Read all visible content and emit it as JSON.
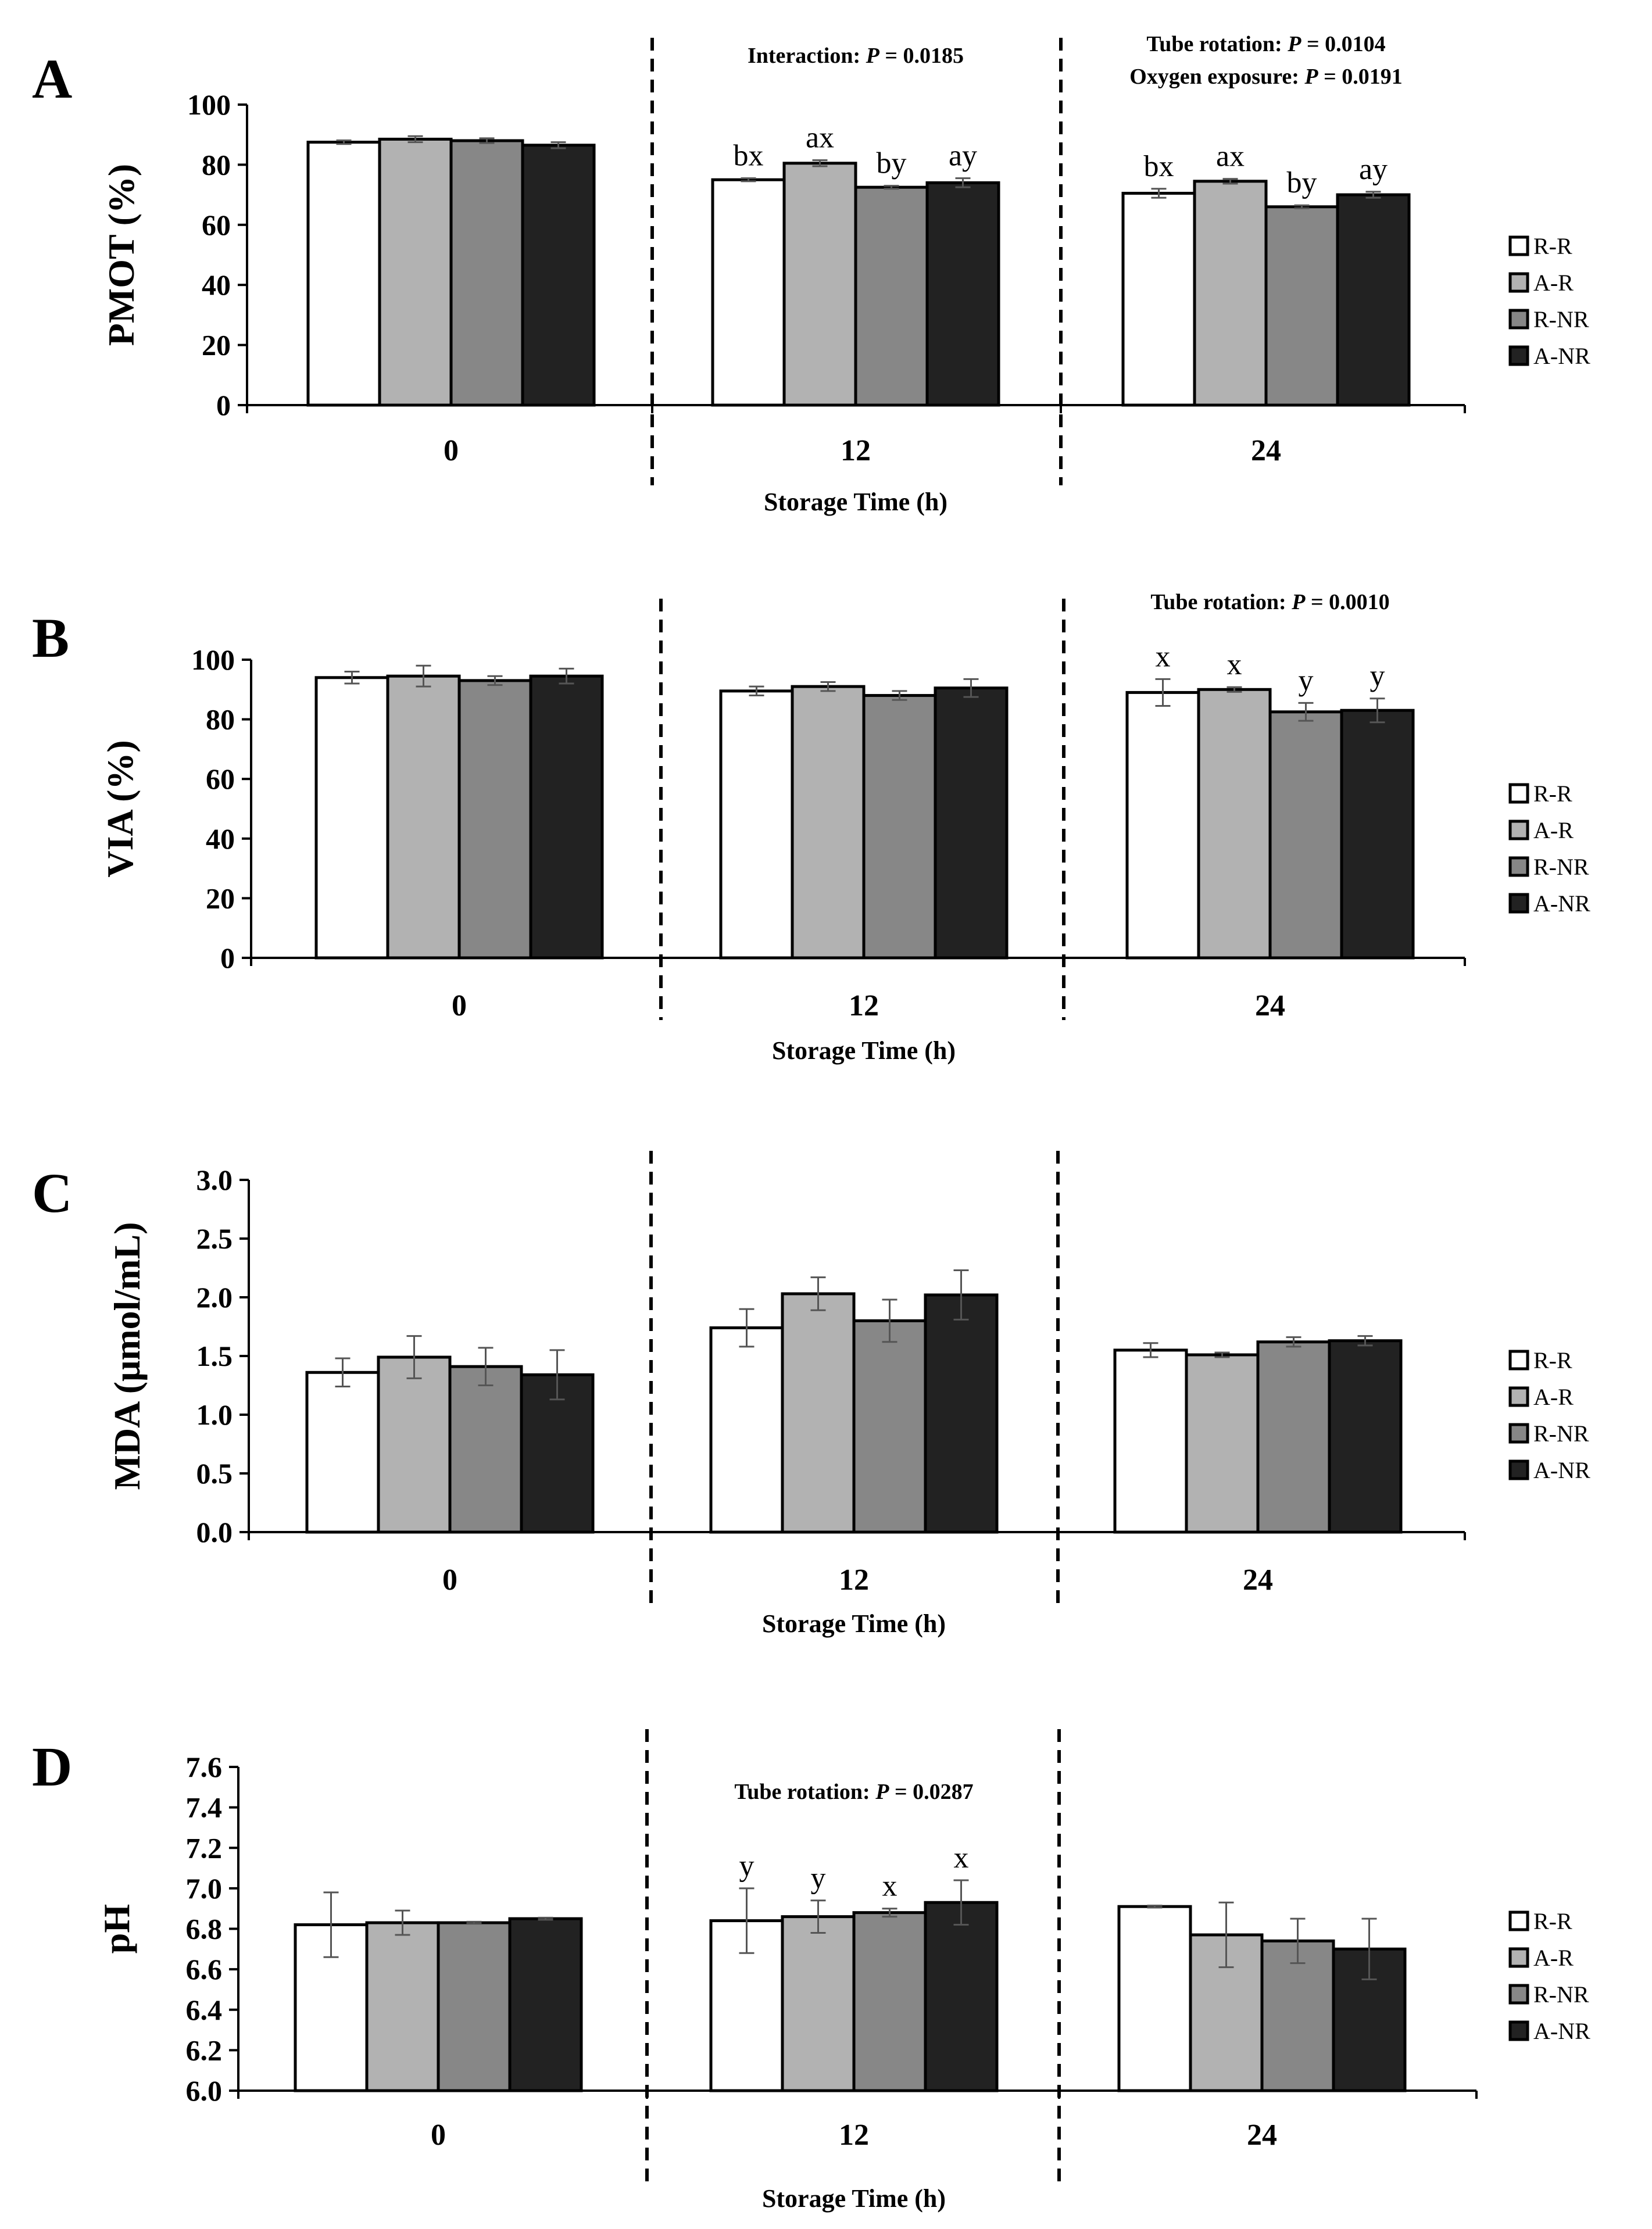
{
  "colors": {
    "R-R": "#ffffff",
    "A-R": "#b2b2b2",
    "R-NR": "#878787",
    "A-NR": "#222222"
  },
  "chart_data": [
    {
      "type": "bar",
      "panel": "A",
      "categories": [
        "0",
        "12",
        "24"
      ],
      "xlabel": "Storage Time (h)",
      "ylabel": "PMOT (%)",
      "ylim": [
        0,
        100
      ],
      "yticks": [
        "0",
        "20",
        "40",
        "60",
        "80",
        "100"
      ],
      "legend": "right",
      "series": [
        {
          "name": "R-R",
          "values": [
            87.5,
            75,
            70.5
          ],
          "errors": [
            0.6,
            0.5,
            1.5
          ]
        },
        {
          "name": "A-R",
          "values": [
            88.5,
            80.5,
            74.5
          ],
          "errors": [
            1.0,
            1.0,
            0.8
          ]
        },
        {
          "name": "R-NR",
          "values": [
            88,
            72.5,
            66
          ],
          "errors": [
            0.8,
            0.5,
            0.5
          ]
        },
        {
          "name": "A-NR",
          "values": [
            86.5,
            74,
            70
          ],
          "errors": [
            1.0,
            1.5,
            1.0
          ]
        }
      ],
      "bar_labels": [
        [
          "",
          "",
          "",
          ""
        ],
        [
          "bx",
          "ax",
          "by",
          "ay"
        ],
        [
          "bx",
          "ax",
          "by",
          "ay"
        ]
      ],
      "annotations": [
        {
          "group": 1,
          "lines": [
            {
              "text": "Interaction: ",
              "p": "P",
              "value": " = 0.0185"
            }
          ]
        },
        {
          "group": 2,
          "lines": [
            {
              "text": "Tube rotation: ",
              "p": "P",
              "value": " = 0.0104"
            },
            {
              "text": "Oxygen exposure: ",
              "p": "P",
              "value": " = 0.0191"
            }
          ]
        }
      ]
    },
    {
      "type": "bar",
      "panel": "B",
      "categories": [
        "0",
        "12",
        "24"
      ],
      "xlabel": "Storage Time (h)",
      "ylabel": "VIA (%)",
      "ylim": [
        0,
        100
      ],
      "yticks": [
        "0",
        "20",
        "40",
        "60",
        "80",
        "100"
      ],
      "legend": "right",
      "series": [
        {
          "name": "R-R",
          "values": [
            94,
            89.5,
            89
          ],
          "errors": [
            2.0,
            1.5,
            4.5
          ]
        },
        {
          "name": "A-R",
          "values": [
            94.5,
            91,
            90
          ],
          "errors": [
            3.5,
            1.5,
            0.8
          ]
        },
        {
          "name": "R-NR",
          "values": [
            93,
            88,
            82.5
          ],
          "errors": [
            1.5,
            1.5,
            3.0
          ]
        },
        {
          "name": "A-NR",
          "values": [
            94.5,
            90.5,
            83
          ],
          "errors": [
            2.5,
            3.0,
            4.0
          ]
        }
      ],
      "bar_labels": [
        [
          "",
          "",
          "",
          ""
        ],
        [
          "",
          "",
          "",
          ""
        ],
        [
          "x",
          "x",
          "y",
          "y"
        ]
      ],
      "annotations": [
        {
          "group": 2,
          "lines": [
            {
              "text": "Tube rotation: ",
              "p": "P",
              "value": " = 0.0010"
            }
          ]
        }
      ]
    },
    {
      "type": "bar",
      "panel": "C",
      "categories": [
        "0",
        "12",
        "24"
      ],
      "xlabel": "Storage Time (h)",
      "ylabel": "MDA (μmol/mL)",
      "ylim": [
        0,
        3.0
      ],
      "yticks": [
        "0.0",
        "0.5",
        "1.0",
        "1.5",
        "2.0",
        "2.5",
        "3.0"
      ],
      "legend": "right",
      "series": [
        {
          "name": "R-R",
          "values": [
            1.36,
            1.74,
            1.55
          ],
          "errors": [
            0.12,
            0.16,
            0.06
          ]
        },
        {
          "name": "A-R",
          "values": [
            1.49,
            2.03,
            1.51
          ],
          "errors": [
            0.18,
            0.14,
            0.02
          ]
        },
        {
          "name": "R-NR",
          "values": [
            1.41,
            1.8,
            1.62
          ],
          "errors": [
            0.16,
            0.18,
            0.04
          ]
        },
        {
          "name": "A-NR",
          "values": [
            1.34,
            2.02,
            1.63
          ],
          "errors": [
            0.21,
            0.21,
            0.04
          ]
        }
      ],
      "bar_labels": [
        [
          "",
          "",
          "",
          ""
        ],
        [
          "",
          "",
          "",
          ""
        ],
        [
          "",
          "",
          "",
          ""
        ]
      ],
      "annotations": []
    },
    {
      "type": "bar",
      "panel": "D",
      "categories": [
        "0",
        "12",
        "24"
      ],
      "xlabel": "Storage Time (h)",
      "ylabel": "pH",
      "ylim": [
        6.0,
        7.6
      ],
      "yticks": [
        "6.0",
        "6.2",
        "6.4",
        "6.6",
        "6.8",
        "7.0",
        "7.2",
        "7.4",
        "7.6"
      ],
      "legend": "right",
      "series": [
        {
          "name": "R-R",
          "values": [
            6.82,
            6.84,
            6.91
          ],
          "errors": [
            0.16,
            0.16,
            0.005
          ]
        },
        {
          "name": "A-R",
          "values": [
            6.83,
            6.86,
            6.77
          ],
          "errors": [
            0.06,
            0.08,
            0.16
          ]
        },
        {
          "name": "R-NR",
          "values": [
            6.83,
            6.88,
            6.74
          ],
          "errors": [
            0.005,
            0.02,
            0.11
          ]
        },
        {
          "name": "A-NR",
          "values": [
            6.85,
            6.93,
            6.7
          ],
          "errors": [
            0.005,
            0.11,
            0.15
          ]
        }
      ],
      "bar_labels": [
        [
          "",
          "",
          "",
          ""
        ],
        [
          "y",
          "y",
          "x",
          "x"
        ],
        [
          "",
          "",
          "",
          ""
        ]
      ],
      "annotations": [
        {
          "group": 1,
          "lines": [
            {
              "text": "Tube rotation: ",
              "p": "P",
              "value": " = 0.0287"
            }
          ]
        }
      ]
    }
  ]
}
